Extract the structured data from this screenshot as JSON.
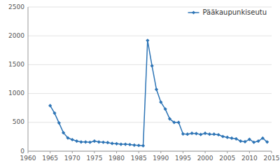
{
  "chart_data": {
    "type": "line",
    "x": [
      1965,
      1966,
      1967,
      1968,
      1969,
      1970,
      1971,
      1972,
      1973,
      1974,
      1975,
      1976,
      1977,
      1978,
      1979,
      1980,
      1981,
      1982,
      1983,
      1984,
      1985,
      1986,
      1987,
      1988,
      1989,
      1990,
      1991,
      1992,
      1993,
      1994,
      1995,
      1996,
      1997,
      1998,
      1999,
      2000,
      2001,
      2002,
      2003,
      2004,
      2005,
      2006,
      2007,
      2008,
      2009,
      2010,
      2011,
      2012,
      2013,
      2014
    ],
    "series": [
      {
        "name": "Pääkaupunkiseutu",
        "color": "#2e75b6",
        "marker": "diamond",
        "values": [
          790,
          660,
          490,
          320,
          230,
          200,
          175,
          160,
          160,
          155,
          175,
          160,
          155,
          150,
          135,
          130,
          120,
          120,
          115,
          105,
          100,
          95,
          1920,
          1480,
          1070,
          850,
          730,
          560,
          500,
          500,
          300,
          295,
          310,
          305,
          290,
          310,
          295,
          295,
          285,
          255,
          240,
          225,
          215,
          175,
          165,
          205,
          155,
          175,
          225,
          160
        ]
      }
    ],
    "xlim": [
      1960,
      2015
    ],
    "ylim": [
      0,
      2500
    ],
    "xticks": [
      1960,
      1965,
      1970,
      1975,
      1980,
      1985,
      1990,
      1995,
      2000,
      2005,
      2010,
      2015
    ],
    "yticks": [
      0,
      500,
      1000,
      1500,
      2000,
      2500
    ],
    "grid": "y",
    "legend": "upper right"
  }
}
